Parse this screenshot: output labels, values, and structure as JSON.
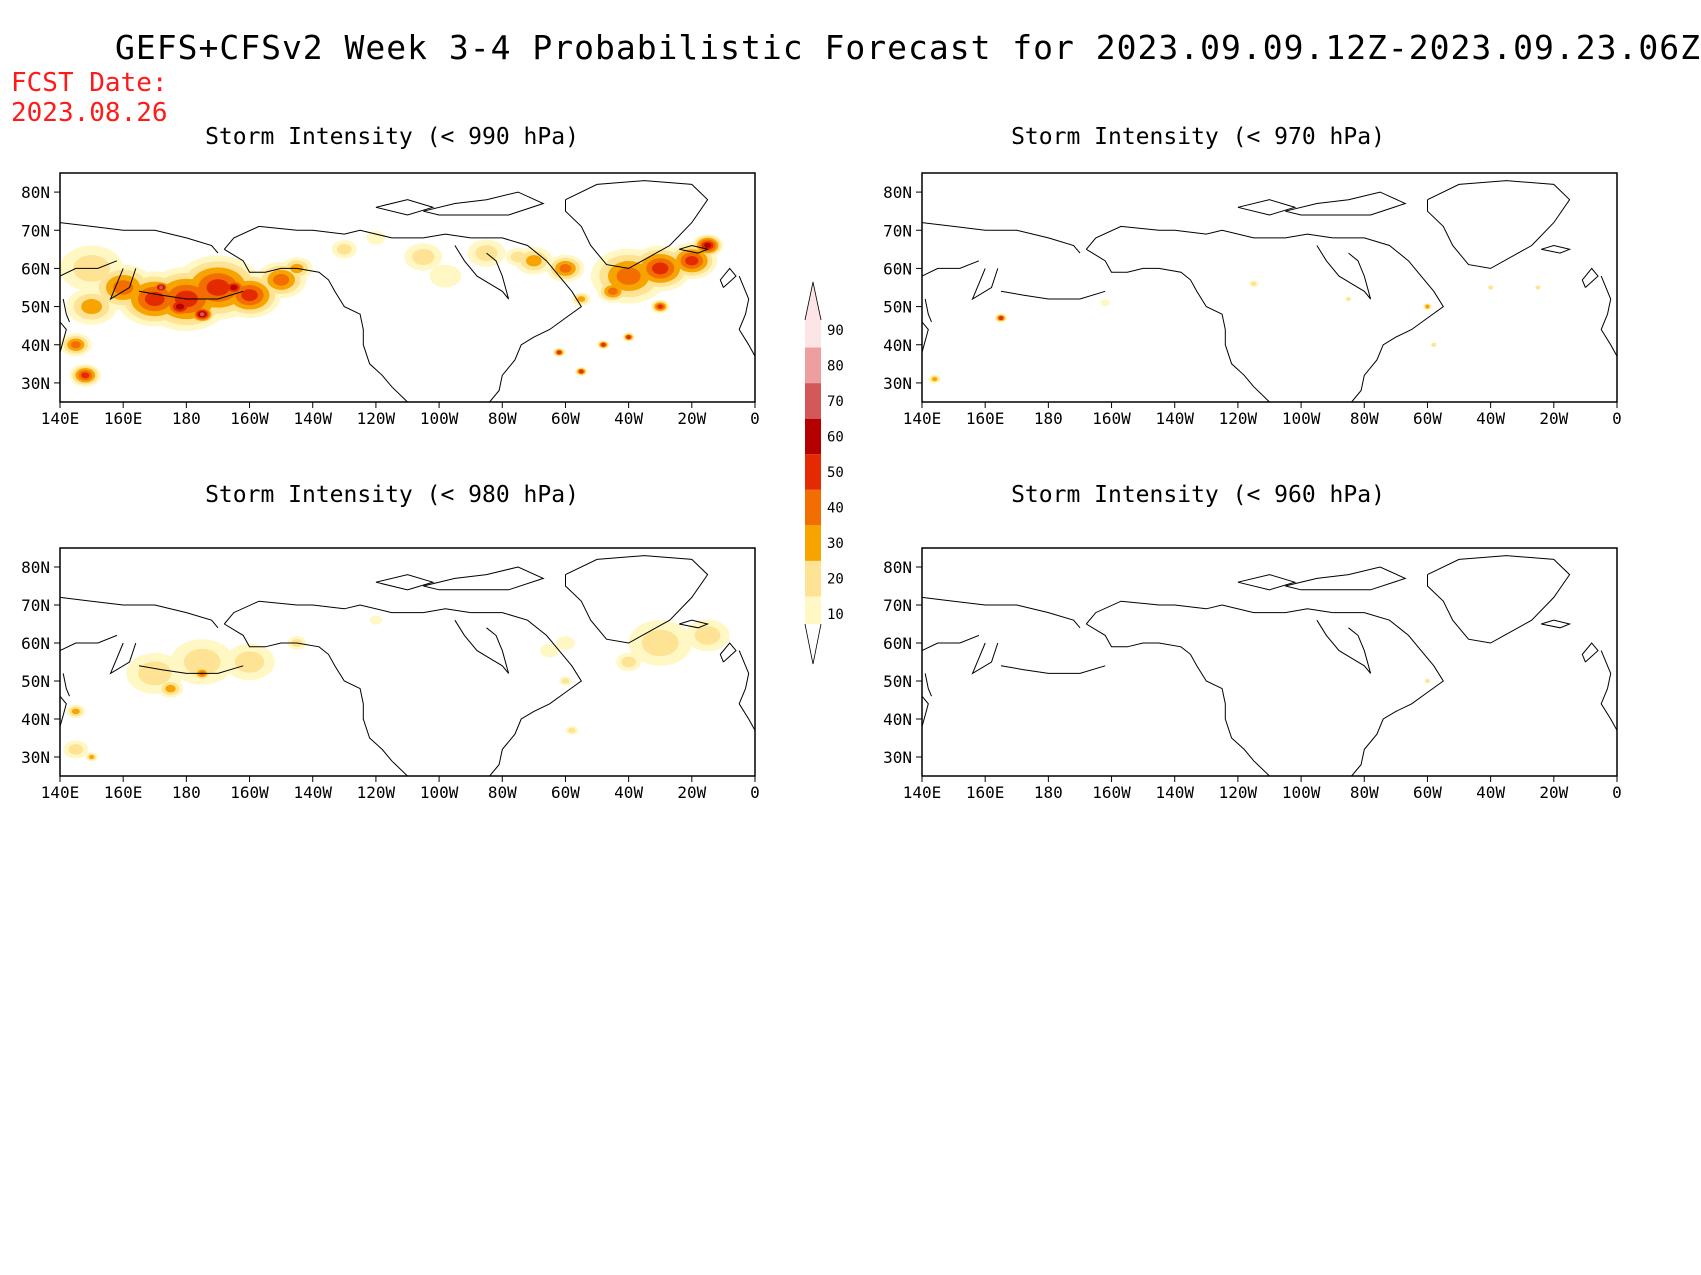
{
  "title": "GEFS+CFSv2 Week 3-4 Probabilistic Forecast for 2023.09.09.12Z-2023.09.23.06Z",
  "fcst_label": "FCST Date:",
  "fcst_date": "2023.08.26",
  "lat_ticks": [
    "80N",
    "70N",
    "60N",
    "50N",
    "40N",
    "30N"
  ],
  "lon_ticks": [
    "140E",
    "160E",
    "180",
    "160W",
    "140W",
    "120W",
    "100W",
    "80W",
    "60W",
    "40W",
    "20W",
    "0"
  ],
  "colorbar": {
    "levels": [
      10,
      20,
      30,
      40,
      50,
      60,
      70,
      80,
      90
    ],
    "colors": [
      "#fff8c4",
      "#ffe394",
      "#f7a400",
      "#f26e00",
      "#e32a00",
      "#b50000",
      "#d4575a",
      "#ef9ea0",
      "#fde4e6"
    ]
  },
  "panels": [
    {
      "id": "p990",
      "title": "Storm Intensity (< 990 hPa)"
    },
    {
      "id": "p970",
      "title": "Storm Intensity (< 970 hPa)"
    },
    {
      "id": "p980",
      "title": "Storm Intensity (< 980 hPa)"
    },
    {
      "id": "p960",
      "title": "Storm Intensity (< 960 hPa)"
    }
  ]
}
